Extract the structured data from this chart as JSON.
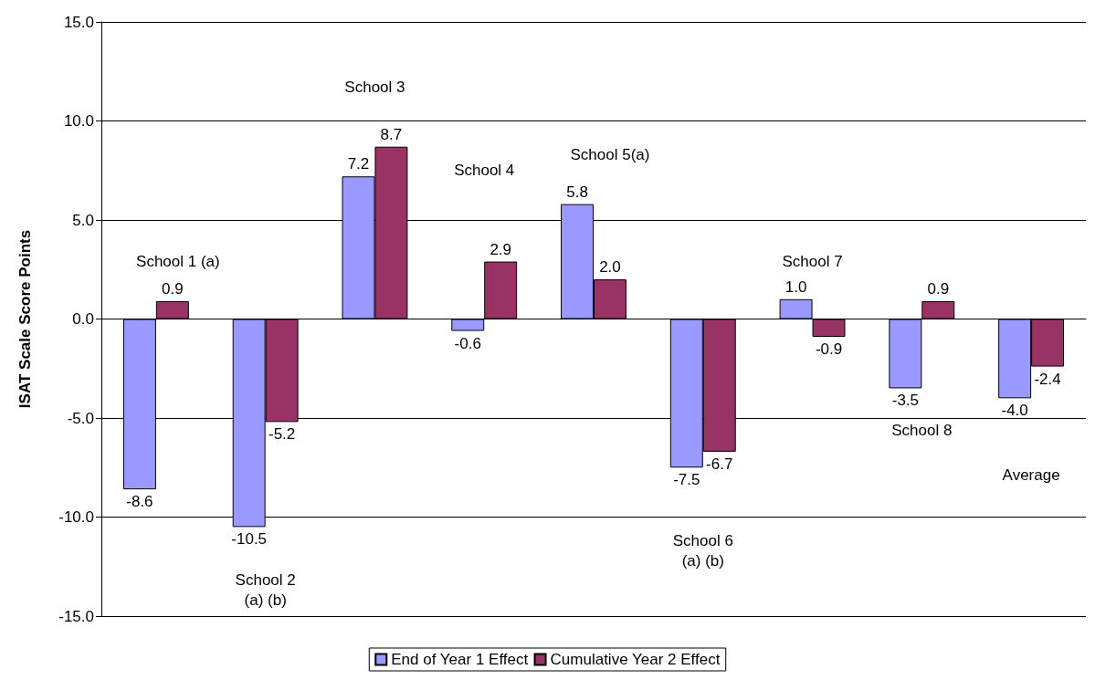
{
  "chart_data": {
    "type": "bar",
    "ylabel": "ISAT Scale Score Points",
    "categories": [
      null,
      null,
      null,
      null,
      null,
      null,
      null,
      null,
      null
    ],
    "series": [
      {
        "name": "End of Year 1 Effect",
        "color": "#9999ff",
        "values": [
          -8.6,
          -10.5,
          7.2,
          -0.6,
          5.8,
          -7.5,
          1.0,
          -3.5,
          -4.0
        ],
        "value_labels": [
          "-8.6",
          "-10.5",
          "7.2",
          "-0.6",
          "5.8",
          "-7.5",
          "1.0",
          "-3.5",
          "-4.0"
        ]
      },
      {
        "name": "Cumulative Year 2 Effect",
        "color": "#993366",
        "values": [
          0.9,
          -5.2,
          8.7,
          2.9,
          2.0,
          -6.7,
          -0.9,
          0.9,
          -2.4
        ],
        "value_labels": [
          "0.9",
          "-5.2",
          "8.7",
          "2.9",
          "2.0",
          "-6.7",
          "-0.9",
          "0.9",
          "-2.4"
        ]
      }
    ],
    "ylim": [
      -15,
      15
    ],
    "yticks": [
      {
        "value": -15,
        "label": "-15.0"
      },
      {
        "value": -10,
        "label": "-10.0"
      },
      {
        "value": -5,
        "label": "-5.0"
      },
      {
        "value": 0,
        "label": "0.0"
      },
      {
        "value": 5,
        "label": "5.0"
      },
      {
        "value": 10,
        "label": "10.0"
      },
      {
        "value": 15,
        "label": "15.0"
      }
    ],
    "grid": "y",
    "legend": "bottom",
    "annotations": [
      "School 1 (a)",
      "School 2\n(a) (b)",
      "School 3",
      "School 4",
      "School 5(a)",
      "School 6\n(a) (b)",
      "School 7",
      "School 8",
      "Average"
    ]
  }
}
